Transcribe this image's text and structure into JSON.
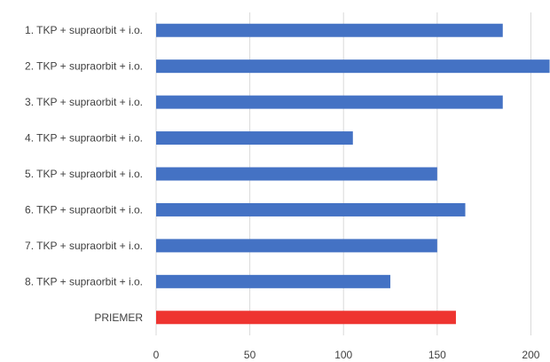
{
  "chart_data": {
    "type": "bar",
    "orientation": "horizontal",
    "categories": [
      "1. TKP + supraorbit + i.o.",
      "2. TKP + supraorbit + i.o.",
      "3. TKP + supraorbit + i.o.",
      "4. TKP + supraorbit + i.o.",
      "5. TKP + supraorbit + i.o.",
      "6. TKP + supraorbit + i.o.",
      "7. TKP + supraorbit + i.o.",
      "8. TKP + supraorbit + i.o.",
      "PRIEMER"
    ],
    "values": [
      185,
      210,
      185,
      105,
      150,
      165,
      150,
      125,
      160
    ],
    "bar_colors": [
      "#4472C4",
      "#4472C4",
      "#4472C4",
      "#4472C4",
      "#4472C4",
      "#4472C4",
      "#4472C4",
      "#4472C4",
      "#EE3430"
    ],
    "xlim": [
      0,
      205
    ],
    "xticks": [
      0,
      50,
      100,
      150,
      200
    ],
    "grid": true,
    "legend": "none",
    "title": "",
    "xlabel": "",
    "ylabel": ""
  }
}
